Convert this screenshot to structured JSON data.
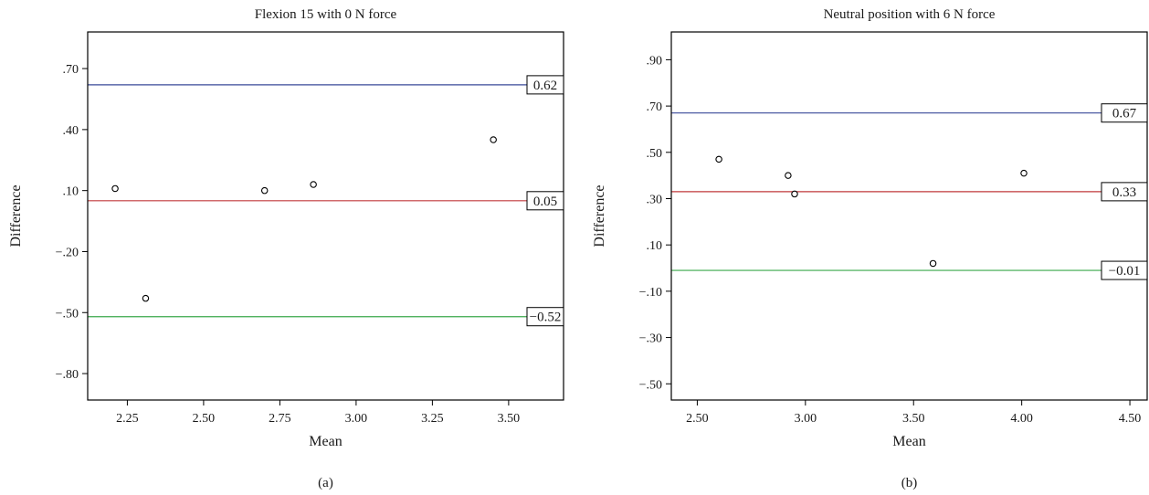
{
  "chart_data": [
    {
      "type": "scatter",
      "title": "Flexion 15 with 0 N force",
      "xlabel": "Mean",
      "ylabel": "Difference",
      "caption": "(a)",
      "xlim": [
        2.12,
        3.68
      ],
      "ylim": [
        -0.93,
        0.88
      ],
      "xticks": [
        2.25,
        2.5,
        2.75,
        3.0,
        3.25,
        3.5
      ],
      "xtick_labels": [
        "2.25",
        "2.50",
        "2.75",
        "3.00",
        "3.25",
        "3.50"
      ],
      "yticks": [
        0.7,
        0.4,
        0.1,
        -0.2,
        -0.5,
        -0.8
      ],
      "ytick_labels": [
        ".70",
        ".40",
        ".10",
        "−.20",
        "−.50",
        "−.80"
      ],
      "points": [
        {
          "x": 2.21,
          "y": 0.11
        },
        {
          "x": 2.31,
          "y": -0.43
        },
        {
          "x": 2.7,
          "y": 0.1
        },
        {
          "x": 2.86,
          "y": 0.13
        },
        {
          "x": 3.45,
          "y": 0.35
        }
      ],
      "reference_lines": [
        {
          "y": 0.62,
          "label": "0.62",
          "color": "#3a4a9a"
        },
        {
          "y": 0.05,
          "label": "0.05",
          "color": "#c0393b"
        },
        {
          "y": -0.52,
          "label": "−0.52",
          "color": "#3aa84a"
        }
      ],
      "grid": false
    },
    {
      "type": "scatter",
      "title": "Neutral position with 6 N force",
      "xlabel": "Mean",
      "ylabel": "Difference",
      "caption": "(b)",
      "xlim": [
        2.38,
        4.58
      ],
      "ylim": [
        -0.57,
        1.02
      ],
      "xticks": [
        2.5,
        3.0,
        3.5,
        4.0,
        4.5
      ],
      "xtick_labels": [
        "2.50",
        "3.00",
        "3.50",
        "4.00",
        "4.50"
      ],
      "yticks": [
        0.9,
        0.7,
        0.5,
        0.3,
        0.1,
        -0.1,
        -0.3,
        -0.5
      ],
      "ytick_labels": [
        ".90",
        ".70",
        ".50",
        ".30",
        ".10",
        "−.10",
        "−.30",
        "−.50"
      ],
      "points": [
        {
          "x": 2.6,
          "y": 0.47
        },
        {
          "x": 2.92,
          "y": 0.4
        },
        {
          "x": 2.95,
          "y": 0.32
        },
        {
          "x": 3.59,
          "y": 0.02
        },
        {
          "x": 4.01,
          "y": 0.41
        }
      ],
      "reference_lines": [
        {
          "y": 0.67,
          "label": "0.67",
          "color": "#3a4a9a"
        },
        {
          "y": 0.33,
          "label": "0.33",
          "color": "#c0393b"
        },
        {
          "y": -0.01,
          "label": "−0.01",
          "color": "#3aa84a"
        }
      ],
      "grid": false
    }
  ]
}
